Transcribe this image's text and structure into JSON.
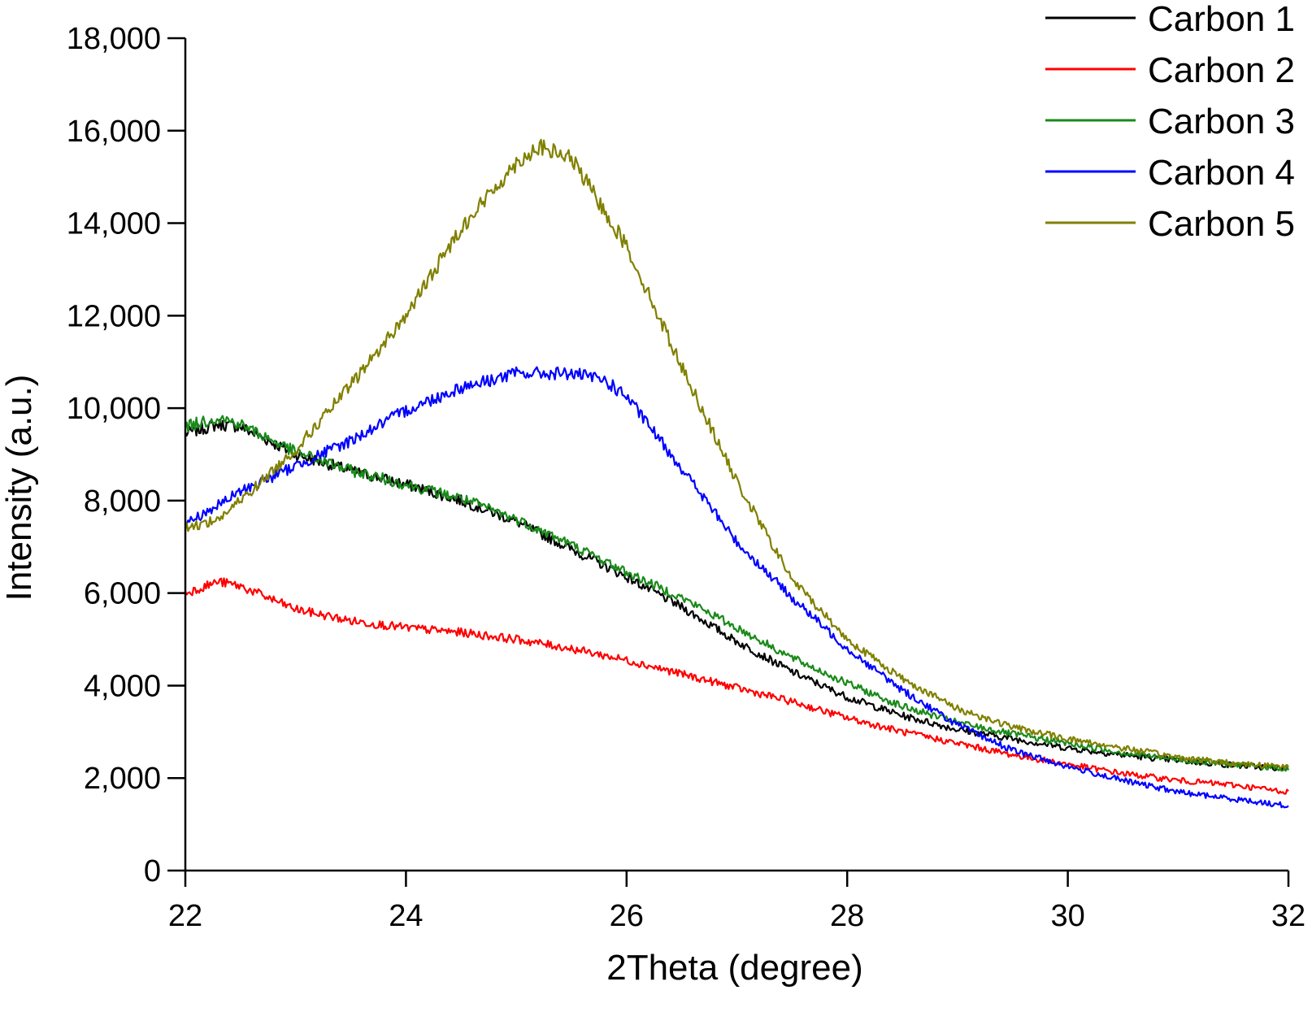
{
  "chart_data": {
    "type": "line",
    "title": "",
    "xlabel": "2Theta (degree)",
    "ylabel": "Intensity (a.u.)",
    "xlim": [
      22,
      32
    ],
    "ylim": [
      0,
      18000
    ],
    "xticks": [
      22,
      24,
      26,
      28,
      30,
      32
    ],
    "xtick_labels": [
      "22",
      "24",
      "26",
      "28",
      "30",
      "32"
    ],
    "yticks": [
      0,
      2000,
      4000,
      6000,
      8000,
      10000,
      12000,
      14000,
      16000,
      18000
    ],
    "ytick_labels": [
      "0",
      "2,000",
      "4,000",
      "6,000",
      "8,000",
      "10,000",
      "12,000",
      "14,000",
      "16,000",
      "18,000"
    ],
    "grid": false,
    "legend_position": "top-right",
    "series": [
      {
        "name": "Carbon 1",
        "color": "#000000",
        "x": [
          22.0,
          22.3,
          22.5,
          23.0,
          23.5,
          24.0,
          24.5,
          25.0,
          25.5,
          26.0,
          26.5,
          27.0,
          27.5,
          28.0,
          28.5,
          29.0,
          29.5,
          30.0,
          30.5,
          31.0,
          31.5,
          32.0
        ],
        "y": [
          9450,
          9650,
          9600,
          9000,
          8650,
          8350,
          8000,
          7550,
          6950,
          6350,
          5700,
          4950,
          4300,
          3750,
          3350,
          3050,
          2850,
          2650,
          2500,
          2380,
          2280,
          2200
        ]
      },
      {
        "name": "Carbon 2",
        "color": "#ff0000",
        "x": [
          22.0,
          22.3,
          22.5,
          23.0,
          23.5,
          24.0,
          24.5,
          25.0,
          25.5,
          26.0,
          26.5,
          27.0,
          27.5,
          28.0,
          28.5,
          29.0,
          29.5,
          30.0,
          30.5,
          31.0,
          31.5,
          32.0
        ],
        "y": [
          6000,
          6250,
          6150,
          5650,
          5400,
          5250,
          5150,
          5000,
          4800,
          4550,
          4250,
          3950,
          3650,
          3300,
          3000,
          2750,
          2500,
          2300,
          2100,
          1950,
          1850,
          1700
        ]
      },
      {
        "name": "Carbon 3",
        "color": "#1a8a1a",
        "x": [
          22.0,
          22.3,
          22.5,
          23.0,
          23.5,
          24.0,
          24.5,
          25.0,
          25.5,
          26.0,
          26.5,
          27.0,
          27.5,
          28.0,
          28.5,
          29.0,
          29.5,
          30.0,
          30.5,
          31.0,
          31.5,
          32.0
        ],
        "y": [
          9600,
          9800,
          9650,
          9050,
          8650,
          8350,
          8050,
          7600,
          7050,
          6450,
          5900,
          5250,
          4600,
          4050,
          3550,
          3200,
          2950,
          2750,
          2550,
          2400,
          2300,
          2200
        ]
      },
      {
        "name": "Carbon 4",
        "color": "#0000ff",
        "x": [
          22.0,
          22.3,
          22.5,
          23.0,
          23.5,
          24.0,
          24.5,
          25.0,
          25.5,
          25.8,
          26.0,
          26.5,
          27.0,
          27.5,
          28.0,
          28.5,
          29.0,
          29.5,
          30.0,
          30.5,
          31.0,
          31.5,
          32.0
        ],
        "y": [
          7500,
          7900,
          8200,
          8750,
          9300,
          9950,
          10450,
          10750,
          10750,
          10600,
          10250,
          8700,
          7100,
          5900,
          4800,
          3900,
          3150,
          2600,
          2250,
          1950,
          1700,
          1550,
          1400
        ]
      },
      {
        "name": "Carbon 5",
        "color": "#808000",
        "x": [
          22.0,
          22.3,
          22.5,
          23.0,
          23.5,
          24.0,
          24.5,
          25.0,
          25.2,
          25.5,
          26.0,
          26.5,
          27.0,
          27.5,
          28.0,
          28.5,
          29.0,
          29.5,
          30.0,
          30.5,
          31.0,
          31.5,
          32.0
        ],
        "y": [
          7400,
          7600,
          8000,
          9100,
          10500,
          12000,
          13900,
          15300,
          15650,
          15400,
          13500,
          10900,
          8400,
          6300,
          5000,
          4150,
          3500,
          3100,
          2850,
          2650,
          2450,
          2320,
          2250
        ]
      }
    ]
  }
}
